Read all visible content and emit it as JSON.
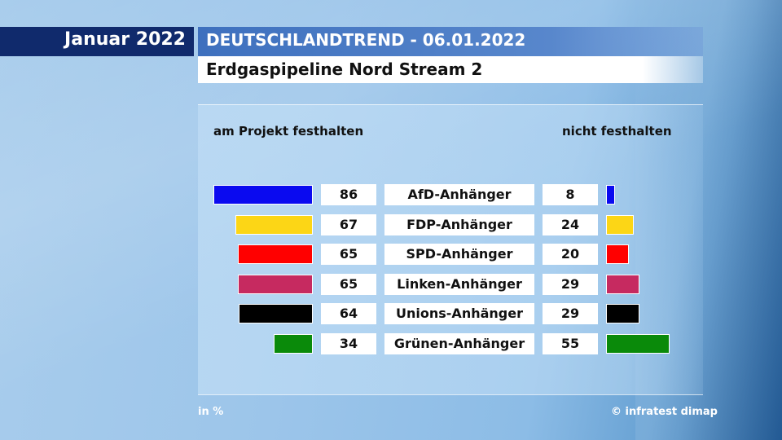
{
  "header": {
    "date": "Januar 2022",
    "title": "DEUTSCHLANDTREND - 06.01.2022",
    "subtitle": "Erdgaspipeline Nord Stream 2"
  },
  "footer": {
    "unit": "in %",
    "source": "© infratest dimap"
  },
  "chart_data": {
    "type": "bar",
    "title": "Erdgaspipeline Nord Stream 2",
    "categories": [
      "AfD-Anhänger",
      "FDP-Anhänger",
      "SPD-Anhänger",
      "Linken-Anhänger",
      "Unions-Anhänger",
      "Grünen-Anhänger"
    ],
    "series": [
      {
        "name": "am Projekt festhalten",
        "values": [
          86,
          67,
          65,
          65,
          64,
          34
        ]
      },
      {
        "name": "nicht festhalten",
        "values": [
          8,
          24,
          20,
          29,
          29,
          55
        ]
      }
    ],
    "colors": [
      "#0a0af0",
      "#fcd616",
      "#ff0000",
      "#c62a60",
      "#000000",
      "#0a8a0a"
    ],
    "unit": "in %",
    "legend": "top",
    "grid": false
  }
}
